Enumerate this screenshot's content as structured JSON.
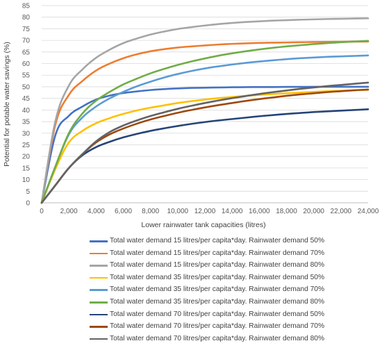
{
  "chart_data": {
    "type": "line",
    "title": "",
    "xlabel": "Lower rainwater tank capacities (litres)",
    "ylabel": "Potential for potable water savings (%)",
    "xlim": [
      0,
      24000
    ],
    "ylim": [
      0,
      85
    ],
    "x_ticks": [
      0,
      2000,
      4000,
      6000,
      8000,
      10000,
      12000,
      14000,
      16000,
      18000,
      20000,
      22000,
      24000
    ],
    "x_tick_labels": [
      "0",
      "2,000",
      "4,000",
      "6,000",
      "8,000",
      "10,000",
      "12,000",
      "14,000",
      "16,000",
      "18,000",
      "20,000",
      "22,000",
      "24,000"
    ],
    "y_ticks": [
      0,
      5,
      10,
      15,
      20,
      25,
      30,
      35,
      40,
      45,
      50,
      55,
      60,
      65,
      70,
      75,
      80,
      85
    ],
    "grid": "horizontal",
    "legend_position": "bottom",
    "x": [
      0,
      1000,
      2000,
      3000,
      4000,
      5000,
      6000,
      7000,
      8000,
      9000,
      10000,
      11000,
      12000,
      13000,
      14000,
      15000,
      16000,
      17000,
      18000,
      19000,
      20000,
      21000,
      22000,
      23000,
      24000
    ],
    "series": [
      {
        "name": "Total water demand 15 litres/per capita*day. Rainwater demand 50%",
        "color": "#4472C4",
        "values": [
          0,
          29,
          37.5,
          41.5,
          44.5,
          46.2,
          47.3,
          48,
          48.6,
          49,
          49.3,
          49.5,
          49.6,
          49.7,
          49.8,
          49.85,
          49.9,
          49.9,
          49.95,
          49.95,
          50,
          50,
          50,
          50,
          50
        ]
      },
      {
        "name": "Total water demand 15 litres/per capita*day. Rainwater demand 70%",
        "color": "#ED7D31",
        "values": [
          0,
          33.5,
          46.5,
          52.5,
          57,
          60,
          62.3,
          64,
          65.3,
          66.2,
          66.9,
          67.4,
          67.8,
          68.2,
          68.5,
          68.7,
          68.9,
          69,
          69.1,
          69.2,
          69.3,
          69.35,
          69.4,
          69.45,
          69.5
        ]
      },
      {
        "name": "Total water demand 15 litres/per capita*day. Rainwater demand 80%",
        "color": "#A5A5A5",
        "values": [
          0,
          35,
          50.5,
          57.5,
          62.5,
          66,
          68.8,
          70.8,
          72.5,
          73.8,
          74.9,
          75.7,
          76.4,
          77,
          77.5,
          77.9,
          78.2,
          78.5,
          78.7,
          78.9,
          79.05,
          79.2,
          79.3,
          79.4,
          79.5
        ]
      },
      {
        "name": "Total water demand 35 litres/per capita*day. Rainwater demand 50%",
        "color": "#FFC000",
        "values": [
          0,
          14.5,
          26,
          31,
          34.3,
          36.5,
          38.3,
          39.8,
          41,
          42,
          43,
          43.8,
          44.5,
          45.1,
          45.6,
          46.1,
          46.5,
          46.9,
          47.2,
          47.5,
          47.8,
          48.1,
          48.3,
          48.5,
          48.7
        ]
      },
      {
        "name": "Total water demand 35 litres/per capita*day. Rainwater demand 70%",
        "color": "#5B9BD5",
        "values": [
          0,
          15.5,
          29.5,
          36.8,
          41.5,
          45,
          47.8,
          50.2,
          52.2,
          54,
          55.5,
          56.8,
          57.9,
          58.8,
          59.6,
          60.3,
          60.9,
          61.4,
          61.9,
          62.3,
          62.6,
          62.9,
          63.1,
          63.3,
          63.5
        ]
      },
      {
        "name": "Total water demand 35 litres/per capita*day. Rainwater demand 80%",
        "color": "#70AD47",
        "values": [
          0,
          15.5,
          30,
          38.5,
          44,
          47.8,
          51,
          53.5,
          55.8,
          57.7,
          59.4,
          60.9,
          62.2,
          63.4,
          64.4,
          65.3,
          66.1,
          66.8,
          67.4,
          67.9,
          68.4,
          68.8,
          69.2,
          69.5,
          69.8
        ]
      },
      {
        "name": "Total water demand 70 litres/per capita*day. Rainwater demand 50%",
        "color": "#264478",
        "values": [
          0,
          7.5,
          15,
          20.5,
          24,
          26.3,
          28.2,
          29.7,
          31,
          32.1,
          33.1,
          34,
          34.8,
          35.5,
          36.1,
          36.7,
          37.3,
          37.8,
          38.3,
          38.7,
          39.1,
          39.4,
          39.7,
          40,
          40.3
        ]
      },
      {
        "name": "Total water demand 70 litres/per capita*day. Rainwater demand 70%",
        "color": "#9E480E",
        "values": [
          0,
          7.5,
          15,
          21,
          26,
          29.5,
          32,
          34.1,
          35.9,
          37.4,
          38.8,
          40,
          41.1,
          42.1,
          43,
          43.9,
          44.7,
          45.4,
          46.1,
          46.7,
          47.2,
          47.7,
          48.1,
          48.5,
          48.8
        ]
      },
      {
        "name": "Total water demand 70 litres/per capita*day. Rainwater demand 80%",
        "color": "#636363",
        "values": [
          0,
          7.5,
          15,
          21,
          26.5,
          30.5,
          33.3,
          35.5,
          37.4,
          39,
          40.5,
          41.8,
          43,
          44.1,
          45.1,
          46,
          46.9,
          47.7,
          48.4,
          49.1,
          49.7,
          50.3,
          50.8,
          51.3,
          51.8
        ]
      }
    ]
  }
}
